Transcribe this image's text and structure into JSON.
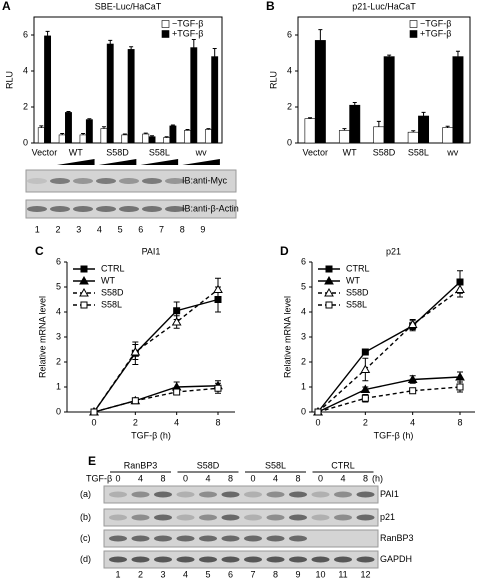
{
  "chart_data": [
    {
      "type": "bar",
      "label": "A",
      "title": "SBE-Luc/HaCaT",
      "ylabel": "RLU",
      "categories": [
        "Vector",
        "WT",
        null,
        "S58D",
        null,
        "S58L",
        null,
        "wv",
        null
      ],
      "ylim": [
        0,
        7
      ],
      "yticks": [
        0,
        2,
        4,
        6
      ],
      "legend": "top-right",
      "series": [
        {
          "name": "−TGF-β",
          "color": "#ffffff",
          "values": [
            0.85,
            0.45,
            0.45,
            0.8,
            0.45,
            0.5,
            0.3,
            0.7,
            0.75
          ],
          "errors": [
            0.1,
            0.08,
            0.08,
            0.1,
            0.05,
            0.05,
            0.05,
            0.05,
            0.05
          ]
        },
        {
          "name": "+TGF-β",
          "color": "#000000",
          "values": [
            5.95,
            1.7,
            1.3,
            5.5,
            5.2,
            0.35,
            0.95,
            5.3,
            4.8
          ],
          "errors": [
            0.25,
            0.05,
            0.05,
            0.2,
            0.15,
            0.05,
            0.05,
            0.45,
            0.45
          ]
        }
      ]
    },
    {
      "type": "bar",
      "label": "B",
      "title": "p21-Luc/HaCaT",
      "ylabel": "RLU",
      "categories": [
        "Vector",
        "WT",
        "S58D",
        "S58L",
        "wv"
      ],
      "ylim": [
        0,
        7
      ],
      "yticks": [
        0,
        2,
        4,
        6
      ],
      "legend": "top-right",
      "series": [
        {
          "name": "−TGF-β",
          "color": "#ffffff",
          "values": [
            1.35,
            0.7,
            0.9,
            0.6,
            0.85
          ],
          "errors": [
            0.05,
            0.1,
            0.3,
            0.08,
            0.08
          ]
        },
        {
          "name": "+TGF-β",
          "color": "#000000",
          "values": [
            5.7,
            2.1,
            4.8,
            1.5,
            4.8
          ],
          "errors": [
            0.6,
            0.15,
            0.08,
            0.2,
            0.3
          ]
        }
      ]
    },
    {
      "type": "line",
      "label": "C",
      "title": "PAI1",
      "ylabel": "Relative mRNA level",
      "xlabel": "TGF-β (h)",
      "categories": [
        "0",
        "2",
        "4",
        "8"
      ],
      "ylim": [
        0,
        6
      ],
      "yticks": [
        0,
        1,
        2,
        3,
        4,
        5,
        6
      ],
      "legend": "top-left",
      "series": [
        {
          "name": "CTRL",
          "color": "#000000",
          "marker": "square",
          "filled": true,
          "dashed": false,
          "values": [
            0,
            2.35,
            4.05,
            4.5
          ],
          "errors": [
            0,
            0.45,
            0.35,
            0.5
          ]
        },
        {
          "name": "WT",
          "color": "#000000",
          "marker": "triangle",
          "filled": true,
          "dashed": false,
          "values": [
            0,
            0.45,
            1.0,
            1.05
          ],
          "errors": [
            0,
            0.1,
            0.2,
            0.2
          ]
        },
        {
          "name": "S58D",
          "color": "#000000",
          "marker": "triangle",
          "filled": false,
          "dashed": true,
          "values": [
            0,
            2.4,
            3.6,
            4.9
          ],
          "errors": [
            0,
            0.3,
            0.25,
            0.45
          ]
        },
        {
          "name": "S58L",
          "color": "#000000",
          "marker": "square",
          "filled": false,
          "dashed": true,
          "values": [
            0,
            0.45,
            0.8,
            0.95
          ],
          "errors": [
            0,
            0.1,
            0.1,
            0.2
          ]
        }
      ]
    },
    {
      "type": "line",
      "label": "D",
      "title": "p21",
      "ylabel": "Relative mRNA level",
      "xlabel": "TGF-β (h)",
      "categories": [
        "0",
        "2",
        "4",
        "8"
      ],
      "ylim": [
        0,
        6
      ],
      "yticks": [
        0,
        1,
        2,
        3,
        4,
        5,
        6
      ],
      "legend": "top-left",
      "series": [
        {
          "name": "CTRL",
          "color": "#000000",
          "marker": "square",
          "filled": true,
          "dashed": false,
          "values": [
            0,
            2.4,
            3.45,
            5.2
          ],
          "errors": [
            0,
            0.1,
            0.2,
            0.45
          ]
        },
        {
          "name": "WT",
          "color": "#000000",
          "marker": "triangle",
          "filled": true,
          "dashed": false,
          "values": [
            0,
            0.9,
            1.3,
            1.4
          ],
          "errors": [
            0,
            0.1,
            0.15,
            0.2
          ]
        },
        {
          "name": "S58D",
          "color": "#000000",
          "marker": "triangle",
          "filled": false,
          "dashed": true,
          "values": [
            0,
            1.7,
            3.5,
            4.9
          ],
          "errors": [
            0,
            0.45,
            0.2,
            0.3
          ]
        },
        {
          "name": "S58L",
          "color": "#000000",
          "marker": "square",
          "filled": false,
          "dashed": true,
          "values": [
            0,
            0.55,
            0.85,
            1.0
          ],
          "errors": [
            0,
            0.15,
            0.1,
            0.2
          ]
        }
      ]
    }
  ],
  "blot_a": {
    "probes": [
      "IB:anti-Myc",
      "IB:anti-β-Actin"
    ],
    "lanes": [
      1,
      2,
      3,
      4,
      5,
      6,
      7,
      8,
      9
    ]
  },
  "blot_e": {
    "label": "E",
    "treatment": "TGF-β",
    "unit": "(h)",
    "groups": [
      "RanBP3",
      "S58D",
      "S58L",
      "CTRL"
    ],
    "times": [
      "0",
      "4",
      "8"
    ],
    "rows": [
      {
        "tag": "(a)",
        "label": "PAI1"
      },
      {
        "tag": "(b)",
        "label": "p21"
      },
      {
        "tag": "(c)",
        "label": "RanBP3"
      },
      {
        "tag": "(d)",
        "label": "GAPDH"
      }
    ],
    "lanes": [
      1,
      2,
      3,
      4,
      5,
      6,
      7,
      8,
      9,
      10,
      11,
      12
    ]
  }
}
